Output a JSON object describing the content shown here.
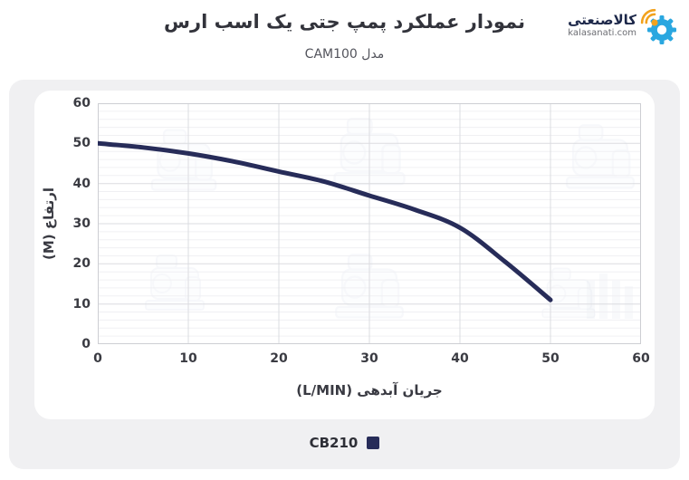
{
  "header": {
    "title": "نمودار عملکرد پمپ جتی یک اسب ارس",
    "subtitle": "مدل CAM100"
  },
  "logo": {
    "brand": "کالاصنعتی",
    "domain": "kalasanati.com",
    "gear_color": "#2aa7e0",
    "signal_color": "#f2a21d"
  },
  "chart_data": {
    "type": "line",
    "title": "نمودار عملکرد پمپ جتی یک اسب ارس",
    "xlabel": "جریان آبدهی (L/MIN)",
    "ylabel": "ارتفاع (M)",
    "xlim": [
      0,
      60
    ],
    "ylim": [
      0,
      60
    ],
    "x_ticks": [
      0,
      10,
      20,
      30,
      40,
      50,
      60
    ],
    "y_ticks": [
      0,
      10,
      20,
      30,
      40,
      50,
      60
    ],
    "grid": true,
    "minor_grid_step_y": 2,
    "legend_position": "bottom",
    "background_watermark": "faint pump product images",
    "series": [
      {
        "name": "CB210",
        "color": "#272c59",
        "points": [
          [
            0,
            50
          ],
          [
            5,
            49
          ],
          [
            10,
            47.5
          ],
          [
            15,
            45.5
          ],
          [
            20,
            43
          ],
          [
            25,
            40.5
          ],
          [
            30,
            37
          ],
          [
            35,
            33.5
          ],
          [
            40,
            29
          ],
          [
            45,
            20.5
          ],
          [
            50,
            11
          ]
        ]
      }
    ]
  }
}
